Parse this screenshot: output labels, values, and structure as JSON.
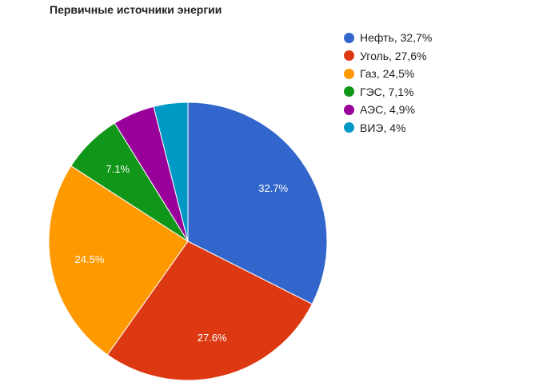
{
  "chart_data": {
    "type": "pie",
    "title": "Первичные источники энергии",
    "categories": [
      "Нефть",
      "Уголь",
      "Газ",
      "ГЭС",
      "АЭС",
      "ВИЭ"
    ],
    "values": [
      32.7,
      27.6,
      24.5,
      7.1,
      4.9,
      4.0
    ],
    "colors": [
      "#3366cc",
      "#dc3912",
      "#ff9900",
      "#109618",
      "#990099",
      "#0099c6"
    ],
    "legend": {
      "placement": "right",
      "entries": [
        "Нефть, 32,7%",
        "Уголь, 27,6%",
        "Газ, 24,5%",
        "ГЭС, 7,1%",
        "АЭС, 4,9%",
        "ВИЭ, 4%"
      ]
    },
    "slice_labels": [
      "32.7%",
      "27.6%",
      "24.5%",
      "7.1%",
      "",
      ""
    ]
  }
}
